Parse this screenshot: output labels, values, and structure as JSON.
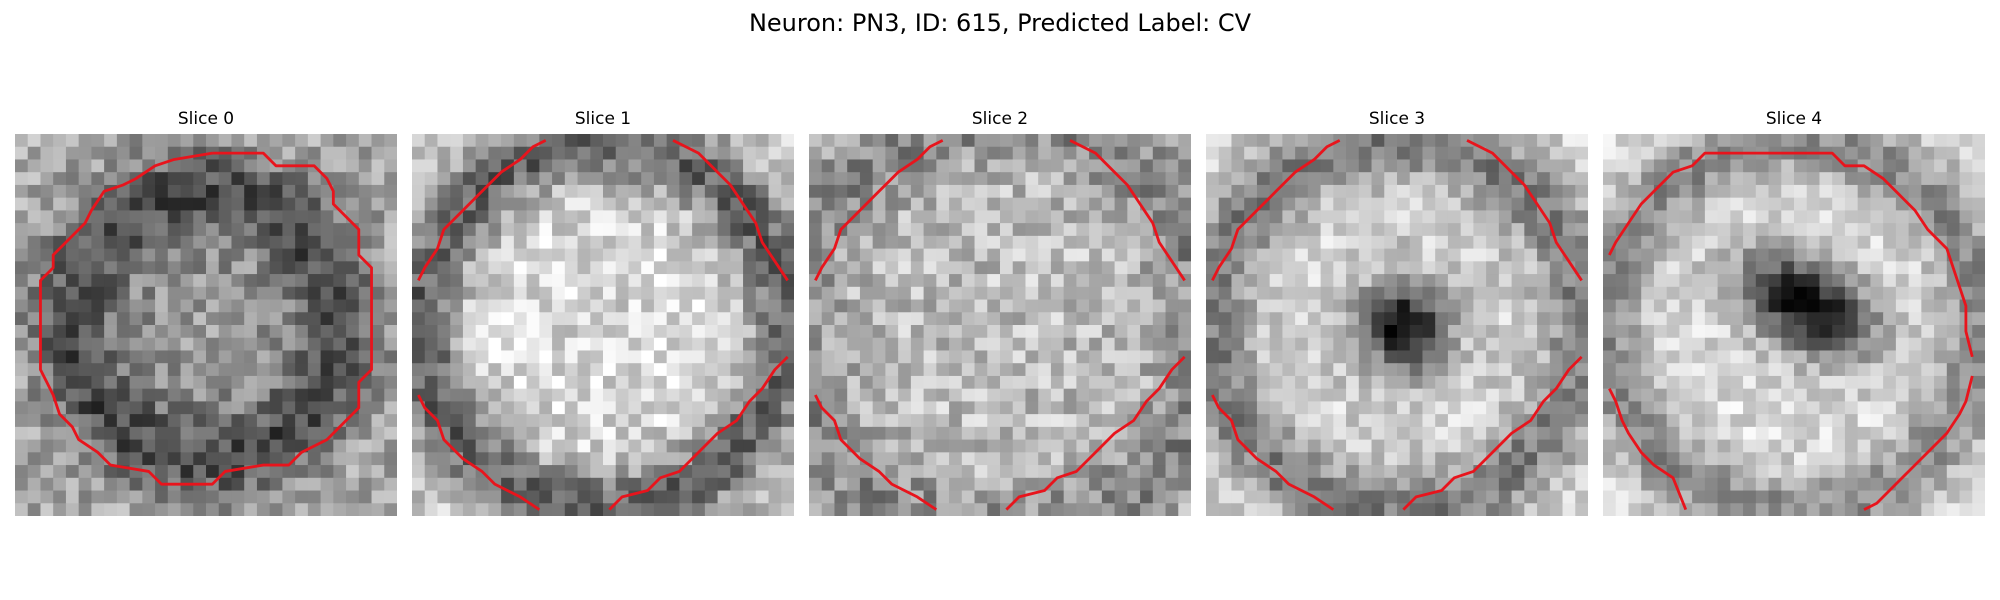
{
  "figure": {
    "title": "Neuron: PN3, ID: 615, Predicted Label: CV"
  },
  "panels": [
    {
      "title": "Slice 0",
      "pattern": "dark-ring-membrane",
      "contour": "closed-circle"
    },
    {
      "title": "Slice 1",
      "pattern": "bright-core-dark-ring",
      "contour": "corner-arcs"
    },
    {
      "title": "Slice 2",
      "pattern": "bright-uniform-texture",
      "contour": "corner-arcs"
    },
    {
      "title": "Slice 3",
      "pattern": "bright-field-dark-center-blob",
      "contour": "corner-arcs"
    },
    {
      "title": "Slice 4",
      "pattern": "bright-field-dark-elongated-blob",
      "contour": "large-circle-open-corners"
    }
  ],
  "colors": {
    "contour": "#e8141c",
    "background": "#ffffff"
  },
  "colormap": "gray"
}
